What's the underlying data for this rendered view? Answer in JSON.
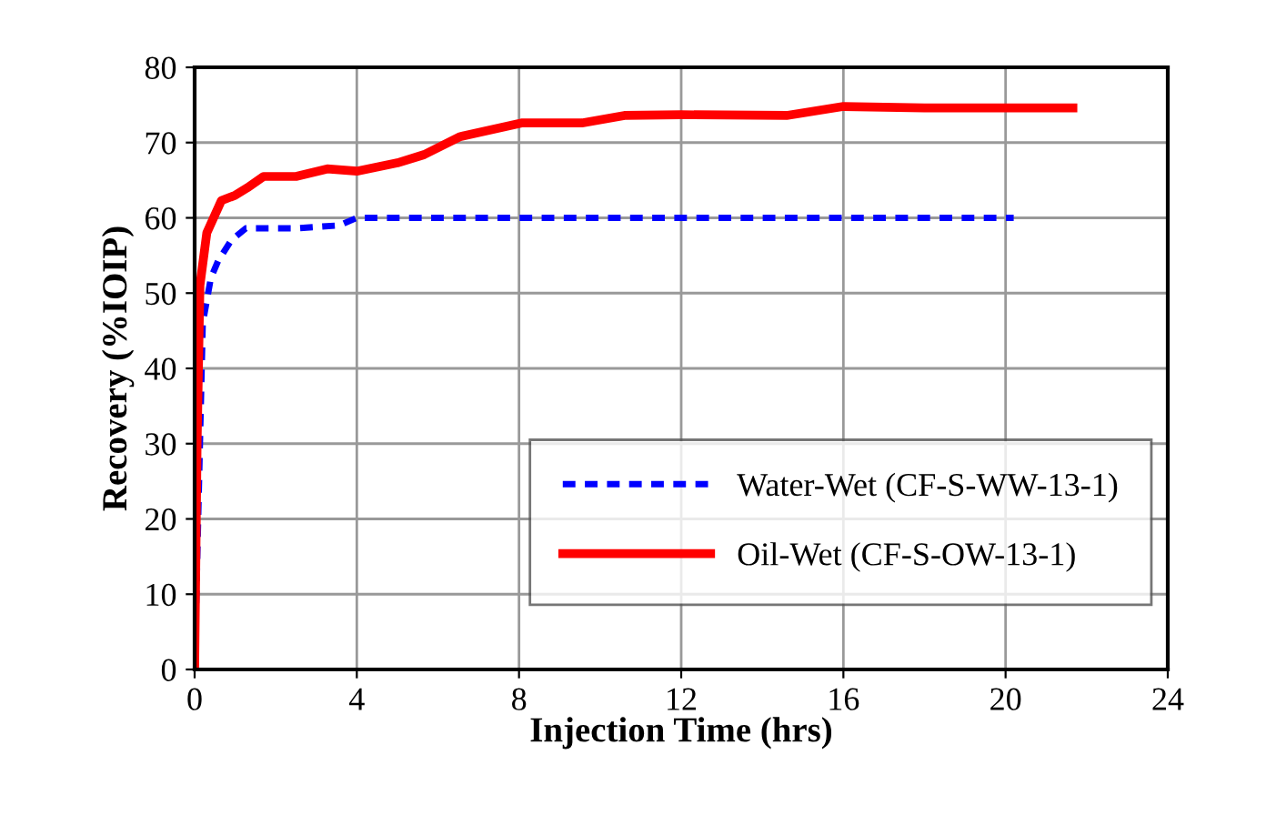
{
  "chart_data": {
    "type": "line",
    "xlabel": "Injection Time (hrs)",
    "ylabel": "Recovery (%IOIP)",
    "xlim": [
      0,
      24
    ],
    "xticks": [
      0,
      4,
      8,
      12,
      16,
      20,
      24
    ],
    "ylim": [
      0,
      80
    ],
    "yticks": [
      0,
      10,
      20,
      30,
      40,
      50,
      60,
      70,
      80
    ],
    "grid": true,
    "legend": "bottom right",
    "marker": "none",
    "series": [
      {
        "name": "Water-Wet (CF-S-WW-13-1)",
        "color": "#0000ff",
        "line_style": "dashed",
        "x": [
          0,
          0.2,
          0.4,
          0.58,
          0.9,
          1.26,
          2.5,
          3.57,
          4.0,
          8,
          12,
          16,
          20.2
        ],
        "values": [
          0,
          46,
          52,
          54.3,
          57,
          58.6,
          58.6,
          59,
          60,
          60,
          60,
          60,
          60
        ]
      },
      {
        "name": "Oil-Wet (CF-S-OW-13-1)",
        "color": "#ff0000",
        "line_style": "solid",
        "x": [
          0,
          0.06,
          0.13,
          0.3,
          0.66,
          1.0,
          1.3,
          1.7,
          2.5,
          3.27,
          4.0,
          5.0,
          5.66,
          6.55,
          8.06,
          9.55,
          10.6,
          12,
          14.6,
          16.0,
          18,
          21.66
        ],
        "values": [
          0,
          30,
          51,
          58,
          62.3,
          63,
          64,
          65.5,
          65.5,
          66.5,
          66.2,
          67.3,
          68.4,
          70.8,
          72.6,
          72.6,
          73.6,
          73.7,
          73.6,
          74.8,
          74.6,
          74.6
        ]
      }
    ]
  }
}
